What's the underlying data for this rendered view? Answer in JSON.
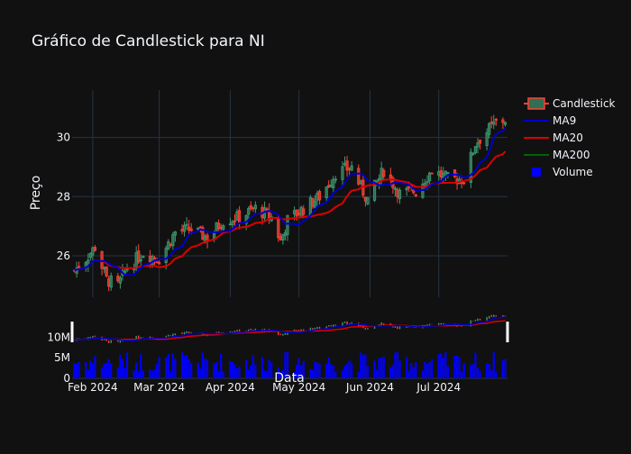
{
  "chart_data": {
    "type": "candlestick",
    "title": "Gráfico de Candlestick para NI",
    "ylabel": "Preço",
    "xlabel": "Data",
    "ylim": [
      24.6,
      31.6
    ],
    "y_ticks": [
      26,
      28,
      30
    ],
    "volume_ticks": [
      "0",
      "5M",
      "10M"
    ],
    "volume_ylim": [
      0,
      14000000
    ],
    "x_range": [
      "2024-01-23",
      "2024-07-31"
    ],
    "x_ticks": [
      {
        "date": "2024-02-01",
        "label": "Feb 2024"
      },
      {
        "date": "2024-03-01",
        "label": "Mar 2024"
      },
      {
        "date": "2024-04-01",
        "label": "Apr 2024"
      },
      {
        "date": "2024-05-01",
        "label": "May 2024"
      },
      {
        "date": "2024-06-01",
        "label": "Jun 2024"
      },
      {
        "date": "2024-07-01",
        "label": "Jul 2024"
      }
    ],
    "legend": [
      {
        "name": "Candlestick",
        "color": "#3d9970"
      },
      {
        "name": "MA9",
        "color": "#0000cc"
      },
      {
        "name": "MA20",
        "color": "#dd0000"
      },
      {
        "name": "MA200",
        "color": "#006400"
      },
      {
        "name": "Volume",
        "color": "#0000ff"
      }
    ],
    "legend_position": "top-right",
    "colors": {
      "increasing": "#3d9970",
      "decreasing": "#ff4136",
      "volume": "#0000ff",
      "ma9": "#0000cc",
      "ma20": "#dd0000",
      "ma200": "#006400"
    },
    "close_anchors": [
      [
        "2024-01-24",
        25.5
      ],
      [
        "2024-01-29",
        25.9
      ],
      [
        "2024-02-02",
        26.3
      ],
      [
        "2024-02-07",
        25.2
      ],
      [
        "2024-02-12",
        25.0
      ],
      [
        "2024-02-16",
        25.6
      ],
      [
        "2024-02-23",
        26.1
      ],
      [
        "2024-03-01",
        25.9
      ],
      [
        "2024-03-08",
        26.8
      ],
      [
        "2024-03-15",
        26.9
      ],
      [
        "2024-03-22",
        26.6
      ],
      [
        "2024-03-29",
        27.2
      ],
      [
        "2024-04-05",
        27.3
      ],
      [
        "2024-04-12",
        27.6
      ],
      [
        "2024-04-19",
        27.3
      ],
      [
        "2024-04-23",
        26.5
      ],
      [
        "2024-04-26",
        27.2
      ],
      [
        "2024-05-03",
        27.6
      ],
      [
        "2024-05-10",
        28.0
      ],
      [
        "2024-05-17",
        28.8
      ],
      [
        "2024-05-24",
        29.0
      ],
      [
        "2024-05-28",
        28.3
      ],
      [
        "2024-05-31",
        27.9
      ],
      [
        "2024-06-07",
        28.9
      ],
      [
        "2024-06-14",
        28.1
      ],
      [
        "2024-06-21",
        28.2
      ],
      [
        "2024-06-28",
        28.9
      ],
      [
        "2024-07-05",
        28.6
      ],
      [
        "2024-07-12",
        28.6
      ],
      [
        "2024-07-17",
        29.8
      ],
      [
        "2024-07-22",
        30.2
      ],
      [
        "2024-07-26",
        30.5
      ],
      [
        "2024-07-30",
        30.6
      ]
    ],
    "volume_range": [
      1500000,
      6500000
    ]
  }
}
